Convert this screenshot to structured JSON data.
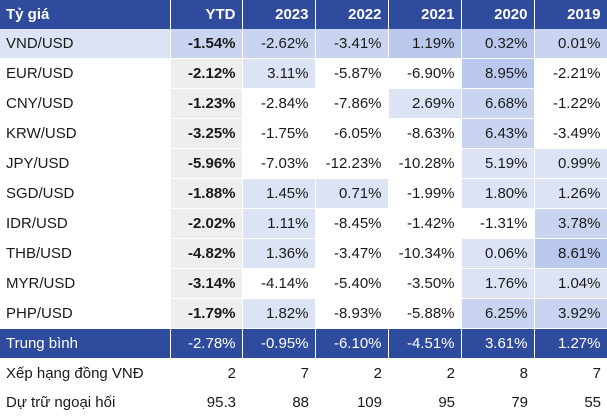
{
  "header": {
    "label": "Tỷ giá",
    "years": [
      "YTD",
      "2023",
      "2022",
      "2021",
      "2020",
      "2019"
    ]
  },
  "rows": [
    {
      "label": "VND/USD",
      "values": [
        "-1.54%",
        "-2.62%",
        "-3.41%",
        "1.19%",
        "0.32%",
        "0.01%"
      ]
    },
    {
      "label": "EUR/USD",
      "values": [
        "-2.12%",
        "3.11%",
        "-5.87%",
        "-6.90%",
        "8.95%",
        "-2.21%"
      ]
    },
    {
      "label": "CNY/USD",
      "values": [
        "-1.23%",
        "-2.84%",
        "-7.86%",
        "2.69%",
        "6.68%",
        "-1.22%"
      ]
    },
    {
      "label": "KRW/USD",
      "values": [
        "-3.25%",
        "-1.75%",
        "-6.05%",
        "-8.63%",
        "6.43%",
        "-3.49%"
      ]
    },
    {
      "label": "JPY/USD",
      "values": [
        "-5.96%",
        "-7.03%",
        "-12.23%",
        "-10.28%",
        "5.19%",
        "0.99%"
      ]
    },
    {
      "label": "SGD/USD",
      "values": [
        "-1.88%",
        "1.45%",
        "0.71%",
        "-1.99%",
        "1.80%",
        "1.26%"
      ]
    },
    {
      "label": "IDR/USD",
      "values": [
        "-2.02%",
        "1.11%",
        "-8.45%",
        "-1.42%",
        "-1.31%",
        "3.78%"
      ]
    },
    {
      "label": "THB/USD",
      "values": [
        "-4.82%",
        "1.36%",
        "-3.47%",
        "-10.34%",
        "0.06%",
        "8.61%"
      ]
    },
    {
      "label": "MYR/USD",
      "values": [
        "-3.14%",
        "-4.14%",
        "-5.40%",
        "-3.50%",
        "1.76%",
        "1.04%"
      ]
    },
    {
      "label": "PHP/USD",
      "values": [
        "-1.79%",
        "1.82%",
        "-8.93%",
        "-5.88%",
        "6.25%",
        "3.92%"
      ]
    }
  ],
  "average": {
    "label": "Trung bình",
    "values": [
      "-2.78%",
      "-0.95%",
      "-6.10%",
      "-4.51%",
      "3.61%",
      "1.27%"
    ]
  },
  "extra_rows": [
    {
      "label": "Xếp hạng đồng VNĐ",
      "values": [
        "2",
        "7",
        "2",
        "2",
        "8",
        "7"
      ]
    },
    {
      "label": "Dự trữ ngoại hối",
      "values": [
        "95.3",
        "88",
        "109",
        "95",
        "79",
        "55"
      ]
    }
  ],
  "colors": {
    "header_bg": "#2f4b9e",
    "header_text": "#ffffff",
    "cell_light": "#dbe3f5",
    "cell_mid": "#c9d5f0",
    "cell_dark": "#b9c8ec",
    "cell_gray": "#eeeeee"
  }
}
